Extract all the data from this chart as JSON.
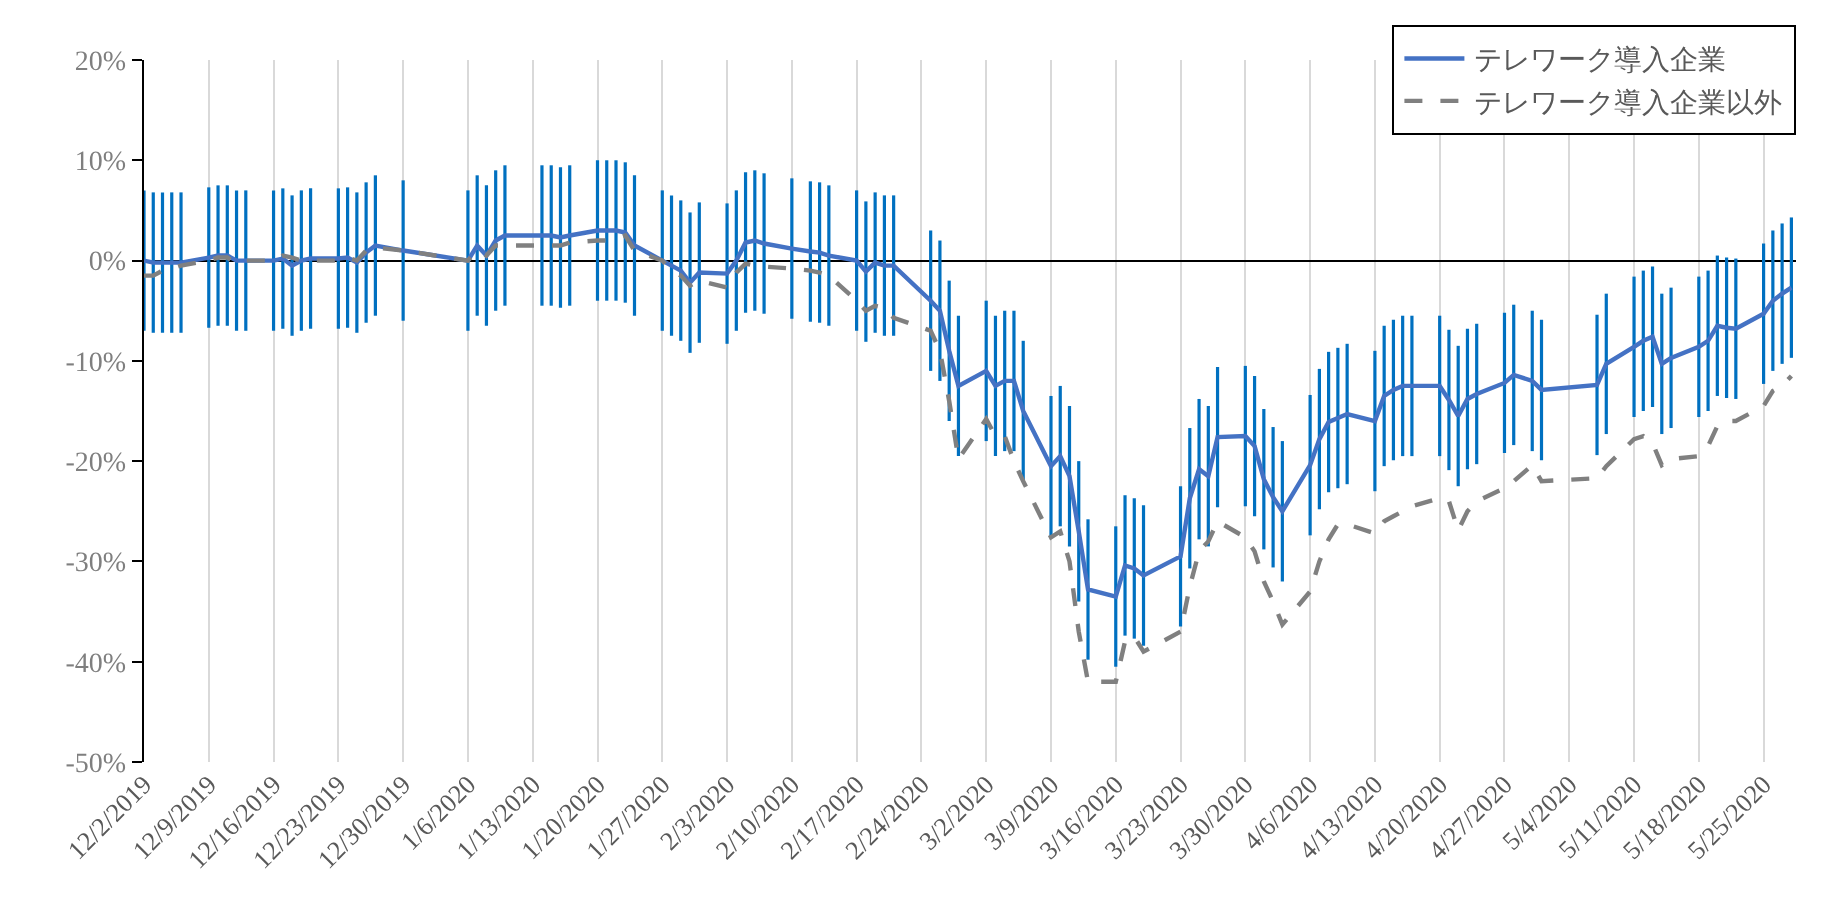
{
  "chart_data": {
    "type": "line",
    "x": [
      "2019-12-02",
      "2019-12-03",
      "2019-12-04",
      "2019-12-05",
      "2019-12-06",
      "2019-12-09",
      "2019-12-10",
      "2019-12-11",
      "2019-12-12",
      "2019-12-13",
      "2019-12-16",
      "2019-12-17",
      "2019-12-18",
      "2019-12-19",
      "2019-12-20",
      "2019-12-23",
      "2019-12-24",
      "2019-12-25",
      "2019-12-26",
      "2019-12-27",
      "2019-12-30",
      "2020-01-06",
      "2020-01-07",
      "2020-01-08",
      "2020-01-09",
      "2020-01-10",
      "2020-01-14",
      "2020-01-15",
      "2020-01-16",
      "2020-01-17",
      "2020-01-20",
      "2020-01-21",
      "2020-01-22",
      "2020-01-23",
      "2020-01-24",
      "2020-01-27",
      "2020-01-28",
      "2020-01-29",
      "2020-01-30",
      "2020-01-31",
      "2020-02-03",
      "2020-02-04",
      "2020-02-05",
      "2020-02-06",
      "2020-02-07",
      "2020-02-10",
      "2020-02-12",
      "2020-02-13",
      "2020-02-14",
      "2020-02-17",
      "2020-02-18",
      "2020-02-19",
      "2020-02-20",
      "2020-02-21",
      "2020-02-25",
      "2020-02-26",
      "2020-02-27",
      "2020-02-28",
      "2020-03-02",
      "2020-03-03",
      "2020-03-04",
      "2020-03-05",
      "2020-03-06",
      "2020-03-09",
      "2020-03-10",
      "2020-03-11",
      "2020-03-12",
      "2020-03-13",
      "2020-03-16",
      "2020-03-17",
      "2020-03-18",
      "2020-03-19",
      "2020-03-23",
      "2020-03-24",
      "2020-03-25",
      "2020-03-26",
      "2020-03-27",
      "2020-03-30",
      "2020-03-31",
      "2020-04-01",
      "2020-04-02",
      "2020-04-03",
      "2020-04-06",
      "2020-04-07",
      "2020-04-08",
      "2020-04-09",
      "2020-04-10",
      "2020-04-13",
      "2020-04-14",
      "2020-04-15",
      "2020-04-16",
      "2020-04-17",
      "2020-04-20",
      "2020-04-21",
      "2020-04-22",
      "2020-04-23",
      "2020-04-24",
      "2020-04-27",
      "2020-04-28",
      "2020-04-30",
      "2020-05-01",
      "2020-05-07",
      "2020-05-08",
      "2020-05-11",
      "2020-05-12",
      "2020-05-13",
      "2020-05-14",
      "2020-05-15",
      "2020-05-18",
      "2020-05-19",
      "2020-05-20",
      "2020-05-21",
      "2020-05-22",
      "2020-05-25",
      "2020-05-26",
      "2020-05-27",
      "2020-05-28"
    ],
    "series": [
      {
        "name": "テレワーク導入企業",
        "color": "#4472c4",
        "line_style": "solid",
        "values": [
          0,
          -0.2,
          -0.2,
          -0.2,
          -0.2,
          0.3,
          0.5,
          0.5,
          0,
          0,
          0,
          0.2,
          -0.5,
          0,
          0.2,
          0.2,
          0.3,
          -0.2,
          0.8,
          1.5,
          1.0,
          0,
          1.5,
          0.5,
          2.0,
          2.5,
          2.5,
          2.5,
          2.3,
          2.5,
          3,
          3,
          3,
          2.8,
          1.5,
          0,
          -0.5,
          -1,
          -2.2,
          -1.2,
          -1.3,
          0,
          1.8,
          2.0,
          1.7,
          1.2,
          0.9,
          0.8,
          0.5,
          0,
          -1.1,
          -0.2,
          -0.5,
          -0.5,
          -4,
          -5,
          -9,
          -12.5,
          -11,
          -12.5,
          -12,
          -12,
          -15,
          -20.5,
          -19.5,
          -21.5,
          -27,
          -32.8,
          -33.5,
          -30.4,
          -30.7,
          -31.4,
          -29.5,
          -23.7,
          -20.8,
          -21.5,
          -17.6,
          -17.5,
          -18.5,
          -21.8,
          -23.6,
          -25,
          -20.4,
          -17.8,
          -16.1,
          -15.7,
          -15.3,
          -16,
          -13.5,
          -12.9,
          -12.5,
          -12.5,
          -12.5,
          -13.9,
          -15.5,
          -13.8,
          -13.3,
          -12.2,
          -11.4,
          -12,
          -12.9,
          -12.4,
          -10.3,
          -8.6,
          -8,
          -7.6,
          -10.3,
          -9.7,
          -8.6,
          -8,
          -6.5,
          -6.7,
          -6.8,
          -5.3,
          -4,
          -3.3,
          -2.7
        ],
        "errors": [
          7,
          7,
          7,
          7,
          7,
          7,
          7,
          7,
          7,
          7,
          7,
          7,
          7,
          7,
          7,
          7,
          7,
          7,
          7,
          7,
          7,
          7,
          7,
          7,
          7,
          7,
          7,
          7,
          7,
          7,
          7,
          7,
          7,
          7,
          7,
          7,
          7,
          7,
          7,
          7,
          7,
          7,
          7,
          7,
          7,
          7,
          7,
          7,
          7,
          7,
          7,
          7,
          7,
          7,
          7,
          7,
          7,
          7,
          7,
          7,
          7,
          7,
          7,
          7,
          7,
          7,
          7,
          7,
          7,
          7,
          7,
          7,
          7,
          7,
          7,
          7,
          7,
          7,
          7,
          7,
          7,
          7,
          7,
          7,
          7,
          7,
          7,
          7,
          7,
          7,
          7,
          7,
          7,
          7,
          7,
          7,
          7,
          7,
          7,
          7,
          7,
          7,
          7,
          7,
          7,
          7,
          7,
          7,
          7,
          7,
          7,
          7,
          7,
          7,
          7,
          7,
          7
        ]
      },
      {
        "name": "テレワーク導入企業以外",
        "color": "#808080",
        "line_style": "dashed",
        "values": [
          -1.5,
          -1.5,
          -1.0,
          -0.8,
          -0.5,
          0,
          0.3,
          0.3,
          -0.3,
          0,
          0,
          0.5,
          0.3,
          0,
          0,
          0,
          0.3,
          0,
          1.0,
          1.3,
          1.0,
          0,
          1.0,
          0.5,
          1.5,
          1.5,
          1.5,
          1.5,
          1.5,
          1.8,
          2,
          2,
          2.2,
          2.5,
          1,
          0,
          -1,
          -1.5,
          -2.5,
          -2,
          -2.7,
          -1.2,
          -0.3,
          -0.5,
          -0.6,
          -0.8,
          -1,
          -1.2,
          -1.5,
          -4,
          -5,
          -4.5,
          -4.7,
          -5.7,
          -7,
          -9,
          -14,
          -19.8,
          -15.8,
          -17.5,
          -17.5,
          -20,
          -22,
          -27.6,
          -27,
          -30,
          -37,
          -42,
          -42,
          -38,
          -37.5,
          -39,
          -37,
          -32.5,
          -29,
          -28,
          -26,
          -27.6,
          -29,
          -32,
          -34,
          -36.3,
          -33,
          -30,
          -27.8,
          -26.3,
          -26.3,
          -27.2,
          -26,
          -25.5,
          -25,
          -24.5,
          -23.7,
          -24,
          -26.9,
          -25,
          -24,
          -22.7,
          -22,
          -20.4,
          -22,
          -21.7,
          -20.5,
          -17.8,
          -17.5,
          -18.2,
          -20.4,
          -19.8,
          -19.5,
          -18.5,
          -16.5,
          -16,
          -16,
          -14.5,
          -13,
          -12.5,
          -11.5
        ]
      }
    ],
    "xlim": [
      "2019-12-02",
      "2020-05-28T12:00"
    ],
    "xticks": [
      {
        "value": "2019-12-02",
        "label": "12/2/2019"
      },
      {
        "value": "2019-12-09",
        "label": "12/9/2019"
      },
      {
        "value": "2019-12-16",
        "label": "12/16/2019"
      },
      {
        "value": "2019-12-23",
        "label": "12/23/2019"
      },
      {
        "value": "2019-12-30",
        "label": "12/30/2019"
      },
      {
        "value": "2020-01-06",
        "label": "1/6/2020"
      },
      {
        "value": "2020-01-13",
        "label": "1/13/2020"
      },
      {
        "value": "2020-01-20",
        "label": "1/20/2020"
      },
      {
        "value": "2020-01-27",
        "label": "1/27/2020"
      },
      {
        "value": "2020-02-03",
        "label": "2/3/2020"
      },
      {
        "value": "2020-02-10",
        "label": "2/10/2020"
      },
      {
        "value": "2020-02-17",
        "label": "2/17/2020"
      },
      {
        "value": "2020-02-24",
        "label": "2/24/2020"
      },
      {
        "value": "2020-03-02",
        "label": "3/2/2020"
      },
      {
        "value": "2020-03-09",
        "label": "3/9/2020"
      },
      {
        "value": "2020-03-16",
        "label": "3/16/2020"
      },
      {
        "value": "2020-03-23",
        "label": "3/23/2020"
      },
      {
        "value": "2020-03-30",
        "label": "3/30/2020"
      },
      {
        "value": "2020-04-06",
        "label": "4/6/2020"
      },
      {
        "value": "2020-04-13",
        "label": "4/13/2020"
      },
      {
        "value": "2020-04-20",
        "label": "4/20/2020"
      },
      {
        "value": "2020-04-27",
        "label": "4/27/2020"
      },
      {
        "value": "2020-05-04",
        "label": "5/4/2020"
      },
      {
        "value": "2020-05-11",
        "label": "5/11/2020"
      },
      {
        "value": "2020-05-18",
        "label": "5/18/2020"
      },
      {
        "value": "2020-05-25",
        "label": "5/25/2020"
      }
    ],
    "ylim": [
      -50,
      20
    ],
    "yticks": [
      {
        "value": -50,
        "label": "-50%"
      },
      {
        "value": -40,
        "label": "-40%"
      },
      {
        "value": -30,
        "label": "-30%"
      },
      {
        "value": -20,
        "label": "-20%"
      },
      {
        "value": -10,
        "label": "-10%"
      },
      {
        "value": 0,
        "label": "0%"
      },
      {
        "value": 10,
        "label": "10%"
      },
      {
        "value": 20,
        "label": "20%"
      }
    ],
    "grid": "x",
    "legend": "top right",
    "marker": "none"
  }
}
